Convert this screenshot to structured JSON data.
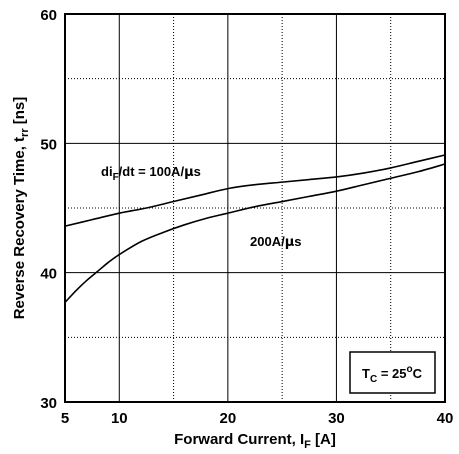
{
  "chart_data": {
    "type": "line",
    "xlabel": {
      "main": "Forward Current, I",
      "sub": "F",
      "unit": " [A]"
    },
    "ylabel": {
      "main": "Reverse Recovery Time, t",
      "sub": "rr",
      "unit": " [ns]"
    },
    "xlim": [
      5,
      40
    ],
    "ylim": [
      30,
      60
    ],
    "x_major_ticks": [
      5,
      10,
      20,
      30,
      40
    ],
    "x_minor_ticks": [
      15,
      25,
      35
    ],
    "y_major_ticks": [
      30,
      40,
      50,
      60
    ],
    "y_minor_ticks": [
      35,
      45,
      55
    ],
    "grid": true,
    "series": [
      {
        "x": [
          5,
          7.5,
          10,
          12.5,
          15,
          17.5,
          20,
          22.5,
          25,
          27.5,
          30,
          32.5,
          35,
          37.5,
          40
        ],
        "y": [
          43.6,
          44.1,
          44.6,
          45.0,
          45.5,
          46.0,
          46.5,
          46.8,
          47.0,
          47.2,
          47.4,
          47.7,
          48.1,
          48.6,
          49.1
        ]
      },
      {
        "x": [
          5,
          6,
          7,
          8,
          9,
          10,
          12,
          14,
          16,
          18,
          20,
          22.5,
          25,
          27.5,
          30,
          32.5,
          35,
          37.5,
          40
        ],
        "y": [
          37.7,
          38.6,
          39.4,
          40.1,
          40.8,
          41.4,
          42.4,
          43.1,
          43.7,
          44.2,
          44.6,
          45.1,
          45.5,
          45.9,
          46.3,
          46.8,
          47.3,
          47.8,
          48.4
        ]
      }
    ],
    "annotations": {
      "curve1": {
        "pre": "di",
        "sub": "F",
        "post": "/dt = 100A/",
        "mu": "µ",
        "tail": "s"
      },
      "curve2": {
        "pre": "200A/",
        "mu": "µ",
        "tail": "s"
      },
      "condition": {
        "pre": "T",
        "sub": "C",
        "mid": " = 25",
        "sup": "o",
        "tail": "C"
      }
    }
  }
}
